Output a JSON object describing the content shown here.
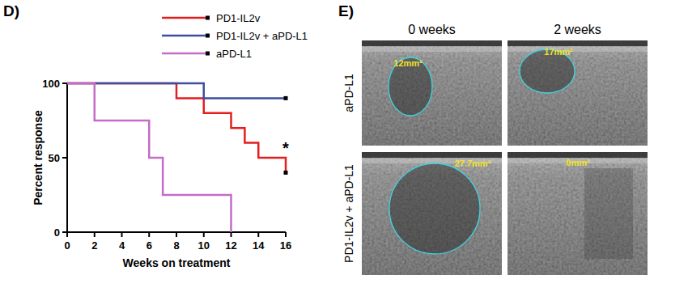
{
  "chart_data": {
    "type": "step",
    "title": "D)",
    "x_label": "Weeks on treatment",
    "y_label": "Percent response",
    "x": [
      0,
      2,
      6,
      7,
      8,
      10,
      12,
      13,
      14,
      16
    ],
    "series": [
      {
        "name": "PD1-IL2v",
        "color": "#e41e1e",
        "marker": "square",
        "values": [
          100,
          100,
          100,
          100,
          90,
          80,
          70,
          60,
          50,
          40
        ]
      },
      {
        "name": "PD1-IL2v + aPD-L1",
        "color": "#3b4ea0",
        "marker": "square",
        "values": [
          100,
          100,
          100,
          100,
          100,
          90,
          90,
          90,
          90,
          90
        ]
      },
      {
        "name": "aPD-L1",
        "color": "#c46cc8",
        "values": [
          100,
          75,
          50,
          25,
          25,
          25,
          0,
          null,
          null,
          null
        ]
      }
    ],
    "xlim": [
      0,
      16
    ],
    "xticks": [
      0,
      2,
      4,
      6,
      8,
      10,
      12,
      14,
      16
    ],
    "ylim": [
      0,
      100
    ],
    "yticks": [
      0,
      50,
      100
    ],
    "legend": "top",
    "annotations": [
      {
        "text": "*",
        "x": 16,
        "y": 57
      }
    ]
  },
  "panel_e": {
    "title": "E)",
    "columns": [
      "0 weeks",
      "2 weeks"
    ],
    "rows": [
      "aPD-L1",
      "PD1-IL2v + aPD-L1"
    ],
    "areas": [
      [
        "12mm²",
        "17mm²"
      ],
      [
        "27.7mm²",
        "0mm²"
      ]
    ]
  }
}
